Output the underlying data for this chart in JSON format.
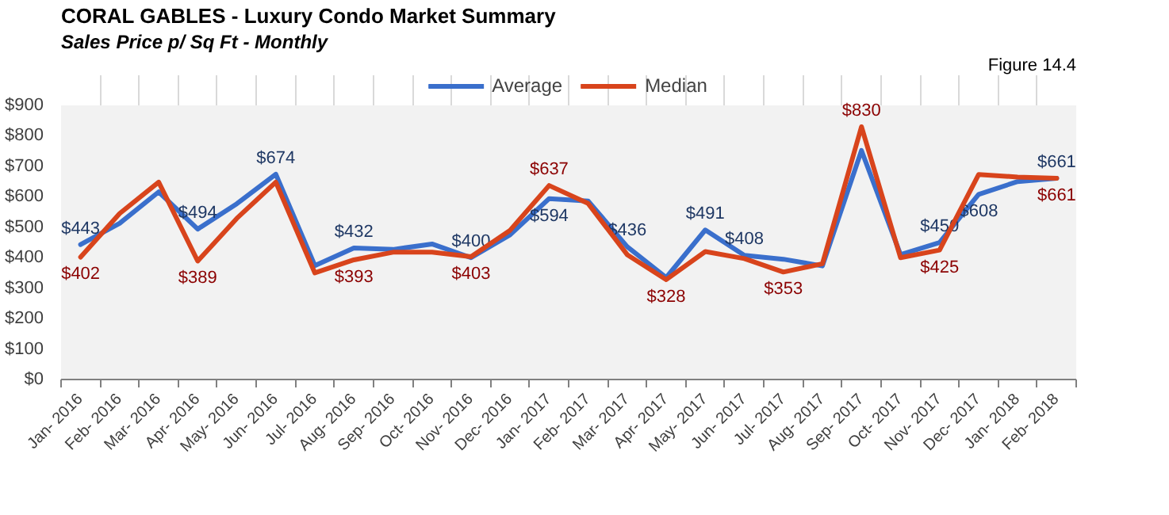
{
  "chart_data": {
    "type": "line",
    "title": "CORAL GABLES - Luxury Condo Market Summary",
    "subtitle": "Sales Price  p/ Sq Ft - Monthly",
    "annotations": [
      "Figure 14.4"
    ],
    "categories": [
      "Jan- 2016",
      "Feb- 2016",
      "Mar- 2016",
      "Apr- 2016",
      "May- 2016",
      "Jun- 2016",
      "Jul- 2016",
      "Aug- 2016",
      "Sep- 2016",
      "Oct- 2016",
      "Nov- 2016",
      "Dec- 2016",
      "Jan- 2017",
      "Feb- 2017",
      "Mar- 2017",
      "Apr- 2017",
      "May- 2017",
      "Jun- 2017",
      "Jul- 2017",
      "Aug- 2017",
      "Sep- 2017",
      "Oct- 2017",
      "Nov- 2017",
      "Dec- 2017",
      "Jan- 2018",
      "Feb- 2018"
    ],
    "series": [
      {
        "name": "Average",
        "color": "#3a6fcc",
        "values": [
          443,
          513,
          616,
          494,
          577,
          674,
          374,
          432,
          427,
          445,
          400,
          475,
          594,
          586,
          436,
          335,
          491,
          408,
          395,
          373,
          752,
          410,
          450,
          608,
          650,
          661
        ],
        "value_labels": [
          "$443",
          null,
          null,
          "$494",
          null,
          "$674",
          null,
          "$432",
          null,
          null,
          "$400",
          null,
          "$594",
          null,
          "$436",
          null,
          "$491",
          "$408",
          null,
          null,
          null,
          null,
          "$450",
          "$608",
          null,
          "$661"
        ]
      },
      {
        "name": "Median",
        "color": "#d8441c",
        "values": [
          402,
          545,
          648,
          389,
          529,
          648,
          350,
          393,
          418,
          418,
          403,
          490,
          637,
          578,
          410,
          328,
          420,
          397,
          353,
          380,
          830,
          400,
          425,
          673,
          665,
          661
        ],
        "value_labels": [
          "$402",
          null,
          null,
          "$389",
          null,
          null,
          null,
          "$393",
          null,
          null,
          "$403",
          null,
          "$637",
          null,
          null,
          "$328",
          null,
          null,
          "$353",
          null,
          "$830",
          null,
          "$425",
          null,
          null,
          "$661"
        ]
      }
    ],
    "ylim": [
      0,
      900
    ],
    "yticks": [
      {
        "value": 0,
        "label": "$0"
      },
      {
        "value": 100,
        "label": "$100"
      },
      {
        "value": 200,
        "label": "$200"
      },
      {
        "value": 300,
        "label": "$300"
      },
      {
        "value": 400,
        "label": "$400"
      },
      {
        "value": 500,
        "label": "$500"
      },
      {
        "value": 600,
        "label": "$600"
      },
      {
        "value": 700,
        "label": "$700"
      },
      {
        "value": 800,
        "label": "$800"
      },
      {
        "value": 900,
        "label": "$900"
      }
    ],
    "grid": "x",
    "legend": "top",
    "marker": "none",
    "line_style": "solid"
  }
}
